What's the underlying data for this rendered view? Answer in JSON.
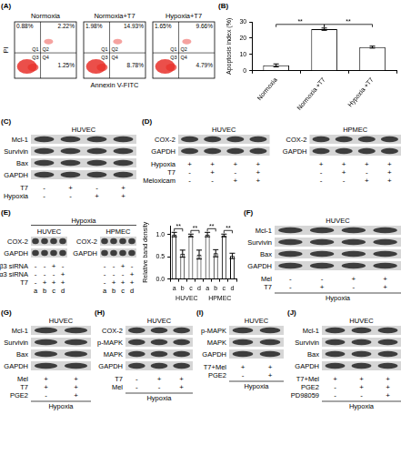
{
  "panel_labels": [
    "(A)",
    "(B)",
    "(C)",
    "(D)",
    "(E)",
    "(F)",
    "(G)",
    "(H)",
    "(I)",
    "(J)"
  ],
  "flow": {
    "xlabel": "Annexin V-FITC",
    "ylabel": "PI",
    "quadrants": [
      "Q1",
      "Q2",
      "Q3",
      "Q4"
    ],
    "plots": [
      {
        "title": "Normoxia",
        "Q1": "0.88%",
        "Q2": "2.22%",
        "Q4": "1.25%"
      },
      {
        "title": "Normoxia+T7",
        "Q1": "1.98%",
        "Q2": "14.93%",
        "Q4": "8.78%"
      },
      {
        "title": "Hypoxia+T7",
        "Q1": "1.65%",
        "Q2": "9.66%",
        "Q4": "4.79%"
      }
    ]
  },
  "chart_data": [
    {
      "type": "bar",
      "ylabel": "Apoptosis index (%)",
      "categories": [
        "Normoxia",
        "Normoxia +T7",
        "Hypoxia +T7"
      ],
      "values": [
        3.3,
        25.5,
        14.5
      ],
      "errors": [
        0.9,
        0.7,
        0.6
      ],
      "color": "#ffffff",
      "ylim": [
        0,
        30
      ],
      "yticks": [
        0,
        10,
        20,
        30
      ],
      "grid": false,
      "significance": [
        {
          "from": 0,
          "to": 1,
          "label": "**"
        },
        {
          "from": 1,
          "to": 2,
          "label": "**"
        }
      ]
    },
    {
      "type": "bar",
      "ylabel": "Relative band density",
      "categories": [
        "a",
        "b",
        "c",
        "d",
        "a",
        "b",
        "c",
        "d"
      ],
      "groups": [
        "HUVEC",
        "HPMEC"
      ],
      "values": [
        1.0,
        0.57,
        0.98,
        0.55,
        1.0,
        0.58,
        0.98,
        0.52
      ],
      "errors": [
        0.05,
        0.08,
        0.03,
        0.1,
        0.05,
        0.08,
        0.03,
        0.06
      ],
      "color": "#ffffff",
      "ylim": [
        0,
        1.2
      ],
      "yticks": [
        {
          "value": 0,
          "label": "0.0"
        },
        {
          "value": 0.5,
          "label": "0.5"
        },
        {
          "value": 1,
          "label": "1.0"
        }
      ],
      "grid": false,
      "significance": [
        {
          "from": 0,
          "to": 1,
          "label": "**"
        },
        {
          "from": 2,
          "to": 3,
          "label": "**"
        },
        {
          "from": 4,
          "to": 5,
          "label": "**"
        },
        {
          "from": 6,
          "to": 7,
          "label": "**"
        }
      ]
    }
  ],
  "blots": {
    "C": {
      "blots": [
        {
          "cell": "HUVEC",
          "bands": [
            "Mcl-1",
            "Survivin",
            "Bax",
            "GAPDH"
          ]
        }
      ],
      "conditions": [
        {
          "name": "T7",
          "signs": [
            "-",
            "+",
            "-",
            "+"
          ]
        },
        {
          "name": "Hypoxia",
          "signs": [
            "-",
            "-",
            "+",
            "+"
          ]
        }
      ]
    },
    "D": {
      "blots": [
        {
          "cell": "HUVEC",
          "bands": [
            "COX-2",
            "GAPDH"
          ]
        },
        {
          "cell": "HPMEC",
          "bands": [
            "COX-2",
            "GAPDH"
          ]
        }
      ],
      "conditions": [
        {
          "name": "Hypoxia",
          "signs": [
            "+",
            "+",
            "+",
            "+"
          ]
        },
        {
          "name": "T7",
          "signs": [
            "-",
            "+",
            "-",
            "+"
          ]
        },
        {
          "name": "Meloxicam",
          "signs": [
            "-",
            "-",
            "+",
            "+"
          ]
        }
      ]
    },
    "E": {
      "group": "Hypoxia",
      "blots": [
        {
          "cell": "HUVEC",
          "bands": [
            "COX-2",
            "GAPDH"
          ]
        },
        {
          "cell": "HPMEC",
          "bands": [
            "COX-2",
            "GAPDH"
          ]
        }
      ],
      "conditions": [
        {
          "name": "β3 siRNA",
          "signs": [
            "-",
            "-",
            "+",
            "-"
          ]
        },
        {
          "name": "α3 siRNA",
          "signs": [
            "-",
            "-",
            "-",
            "+"
          ]
        },
        {
          "name": "T7",
          "signs": [
            "-",
            "+",
            "+",
            "+"
          ]
        }
      ],
      "lanes": [
        "a",
        "b",
        "c",
        "d"
      ]
    },
    "F": {
      "group": "Hypoxia",
      "blots": [
        {
          "cell": "HUVEC",
          "bands": [
            "Mcl-1",
            "Survivin",
            "Bax",
            "GAPDH"
          ]
        }
      ],
      "conditions": [
        {
          "name": "Mel",
          "signs": [
            "-",
            "-",
            "+",
            "+"
          ]
        },
        {
          "name": "T7",
          "signs": [
            "-",
            "+",
            "-",
            "+"
          ]
        }
      ]
    },
    "G": {
      "group": "Hypoxia",
      "blots": [
        {
          "cell": "HUVEC",
          "bands": [
            "Mcl-1",
            "Survivin",
            "Bax",
            "GAPDH"
          ]
        }
      ],
      "conditions": [
        {
          "name": "Mel",
          "signs": [
            "+",
            "+"
          ]
        },
        {
          "name": "T7",
          "signs": [
            "+",
            "+"
          ]
        },
        {
          "name": "PGE2",
          "signs": [
            "-",
            "+"
          ]
        }
      ]
    },
    "H": {
      "group": "Hypoxia",
      "blots": [
        {
          "cell": "HUVEC",
          "bands": [
            "COX-2",
            "p-MAPK",
            "MAPK",
            "GAPDH"
          ]
        }
      ],
      "conditions": [
        {
          "name": "T7",
          "signs": [
            "-",
            "+",
            "+"
          ]
        },
        {
          "name": "Mel",
          "signs": [
            "-",
            "-",
            "+"
          ]
        }
      ]
    },
    "I": {
      "group": "Hypoxia",
      "blots": [
        {
          "cell": "HUVEC",
          "bands": [
            "p-MAPK",
            "MAPK",
            "GAPDH"
          ]
        }
      ],
      "conditions": [
        {
          "name": "T7+Mel",
          "signs": [
            "+",
            "+"
          ]
        },
        {
          "name": "PGE2",
          "signs": [
            "-",
            "+"
          ]
        }
      ]
    },
    "J": {
      "group": "Hypoxia",
      "blots": [
        {
          "cell": "HUVEC",
          "bands": [
            "Mcl-1",
            "Survivin",
            "Bax",
            "GAPDH"
          ]
        }
      ],
      "conditions": [
        {
          "name": "T7+Mel",
          "signs": [
            "+",
            "+",
            "+"
          ]
        },
        {
          "name": "PGE2",
          "signs": [
            "-",
            "+",
            "+"
          ]
        },
        {
          "name": "PD98059",
          "signs": [
            "-",
            "-",
            "+"
          ]
        }
      ]
    }
  }
}
